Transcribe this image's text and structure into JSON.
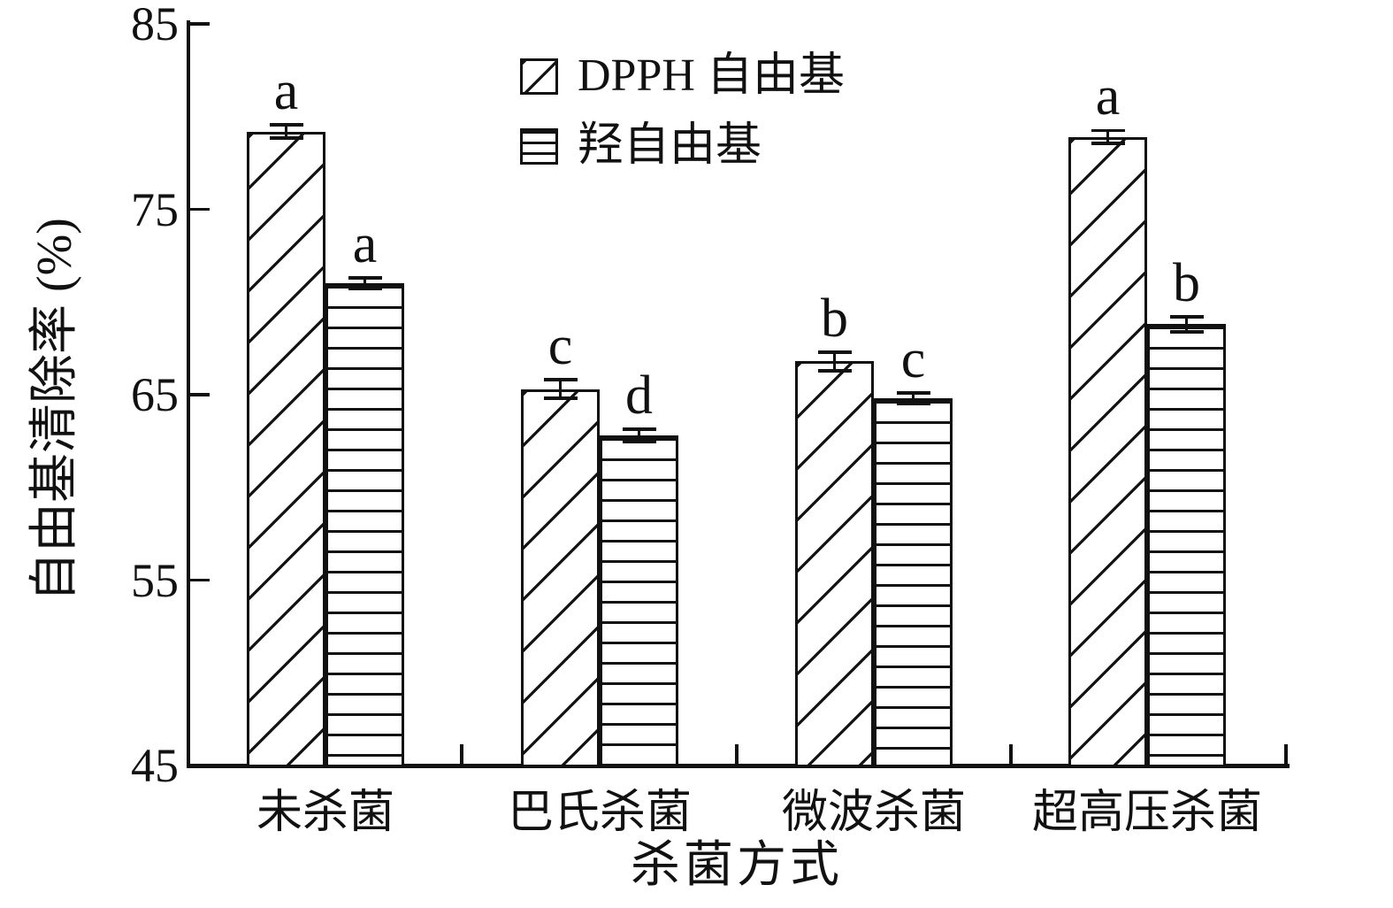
{
  "chart_data": {
    "type": "bar",
    "title": "",
    "categories": [
      "未杀菌",
      "巴氏杀菌",
      "微波杀菌",
      "超高压杀菌"
    ],
    "series": [
      {
        "name": "DPPH 自由基",
        "pattern": "diagonal-hatch",
        "values": [
          79.2,
          65.3,
          66.8,
          78.9
        ],
        "errors": [
          0.35,
          0.5,
          0.5,
          0.35
        ],
        "sig_letters": [
          "a",
          "c",
          "b",
          "a"
        ]
      },
      {
        "name": "羟自由基",
        "pattern": "horizontal-hatch",
        "values": [
          71.0,
          62.8,
          64.8,
          68.8
        ],
        "errors": [
          0.3,
          0.35,
          0.3,
          0.4
        ],
        "sig_letters": [
          "a",
          "d",
          "c",
          "b"
        ]
      }
    ],
    "xlabel": "杀菌方式",
    "ylabel": "自由基清除率 (%)",
    "ylim": [
      45,
      85
    ],
    "yticks": [
      85,
      75,
      65,
      55,
      45
    ],
    "grid": false,
    "legend_position": "top-center-inside",
    "bar_fill": "#ffffff",
    "ink_color": "#111111"
  }
}
